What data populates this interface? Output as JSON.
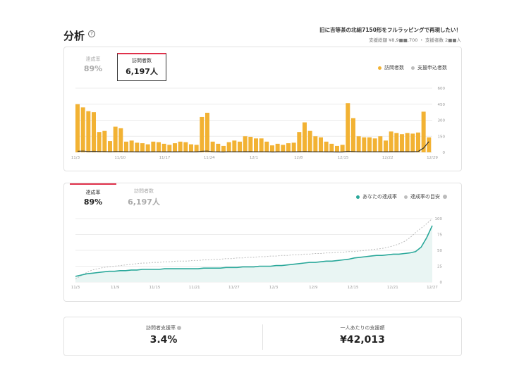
{
  "page": {
    "title": "分析",
    "project_name": "旧に吉等茶の北組7150形をフルラッピングで再現したい！",
    "project_sub": "支援総額 ¥8,9■■,700 ・ 支援者数 2■■人"
  },
  "card1": {
    "tabs": [
      {
        "label": "達成率",
        "value": "89%"
      },
      {
        "label": "訪問者数",
        "value": "6,197人"
      }
    ],
    "legend": [
      {
        "label": "訪問者数",
        "color": "#f2b233"
      },
      {
        "label": "支援申込者数",
        "color": "#bdbdbd"
      }
    ]
  },
  "card2": {
    "tabs": [
      {
        "label": "達成率",
        "value": "89%"
      },
      {
        "label": "訪問者数",
        "value": "6,197人"
      }
    ],
    "legend": [
      {
        "label": "あなたの達成率",
        "color": "#2aa89a"
      },
      {
        "label": "達成率の目安",
        "color": "#bdbdbd"
      }
    ]
  },
  "card3": {
    "metrics": [
      {
        "label": "訪問者支援率",
        "value": "3.4%"
      },
      {
        "label": "一人あたりの支援額",
        "value": "¥42,013"
      }
    ]
  },
  "chart_data": [
    {
      "type": "bar",
      "x_ticks": [
        "11/3",
        "11/10",
        "11/17",
        "11/24",
        "12/1",
        "12/8",
        "12/15",
        "12/22",
        "12/29"
      ],
      "y_ticks": [
        "600",
        "450",
        "300",
        "150",
        "0"
      ],
      "ylim": [
        0,
        600
      ],
      "series": [
        {
          "name": "訪問者数",
          "color": "#f2b233",
          "values": [
            450,
            420,
            385,
            375,
            190,
            200,
            105,
            240,
            225,
            100,
            110,
            90,
            85,
            75,
            100,
            95,
            80,
            70,
            85,
            100,
            95,
            75,
            70,
            330,
            370,
            100,
            80,
            60,
            95,
            110,
            100,
            150,
            145,
            130,
            130,
            100,
            65,
            80,
            70,
            85,
            90,
            190,
            280,
            200,
            150,
            140,
            100,
            80,
            60,
            70,
            460,
            320,
            150,
            140,
            140,
            130,
            150,
            110,
            195,
            180,
            170,
            180,
            175,
            185,
            380,
            140
          ]
        },
        {
          "name": "支援申込者数",
          "color": "#333333",
          "values": [
            10,
            12,
            8,
            10,
            8,
            8,
            5,
            8,
            8,
            5,
            5,
            4,
            4,
            4,
            5,
            5,
            4,
            4,
            4,
            5,
            5,
            4,
            4,
            10,
            12,
            5,
            4,
            3,
            5,
            5,
            5,
            6,
            6,
            5,
            5,
            5,
            3,
            4,
            4,
            4,
            4,
            6,
            8,
            6,
            5,
            5,
            4,
            4,
            3,
            3,
            10,
            8,
            5,
            5,
            5,
            5,
            5,
            4,
            6,
            6,
            6,
            6,
            6,
            8,
            40,
            100
          ]
        }
      ]
    },
    {
      "type": "line",
      "x_ticks": [
        "11/3",
        "11/9",
        "11/15",
        "11/21",
        "11/27",
        "12/3",
        "12/9",
        "12/15",
        "12/21",
        "12/27"
      ],
      "y_ticks": [
        "100",
        "75",
        "50",
        "25",
        "0"
      ],
      "ylim": [
        0,
        100
      ],
      "series": [
        {
          "name": "あなたの達成率",
          "color": "#2aa89a",
          "values": [
            9,
            11,
            13,
            14,
            15,
            16,
            17,
            17,
            18,
            18,
            19,
            19,
            20,
            20,
            20,
            20,
            21,
            21,
            21,
            21,
            21,
            21,
            21,
            22,
            22,
            22,
            22,
            23,
            23,
            23,
            24,
            24,
            24,
            25,
            25,
            25,
            26,
            26,
            27,
            28,
            29,
            30,
            31,
            31,
            32,
            33,
            33,
            34,
            35,
            36,
            38,
            39,
            40,
            41,
            42,
            42,
            43,
            44,
            44,
            45,
            46,
            48,
            55,
            70,
            89
          ]
        },
        {
          "name": "達成率の目安",
          "color": "#bdbdbd",
          "values": [
            5,
            10,
            15,
            19,
            21,
            23,
            24,
            25,
            26,
            27,
            28,
            29,
            30,
            30,
            31,
            31,
            32,
            32,
            33,
            33,
            33,
            34,
            34,
            35,
            35,
            36,
            36,
            37,
            37,
            38,
            38,
            39,
            39,
            40,
            40,
            41,
            41,
            42,
            42,
            43,
            43,
            44,
            44,
            45,
            45,
            46,
            46,
            47,
            47,
            48,
            48,
            49,
            50,
            51,
            52,
            53,
            55,
            57,
            60,
            64,
            70,
            78,
            85,
            92,
            100
          ]
        }
      ]
    }
  ]
}
